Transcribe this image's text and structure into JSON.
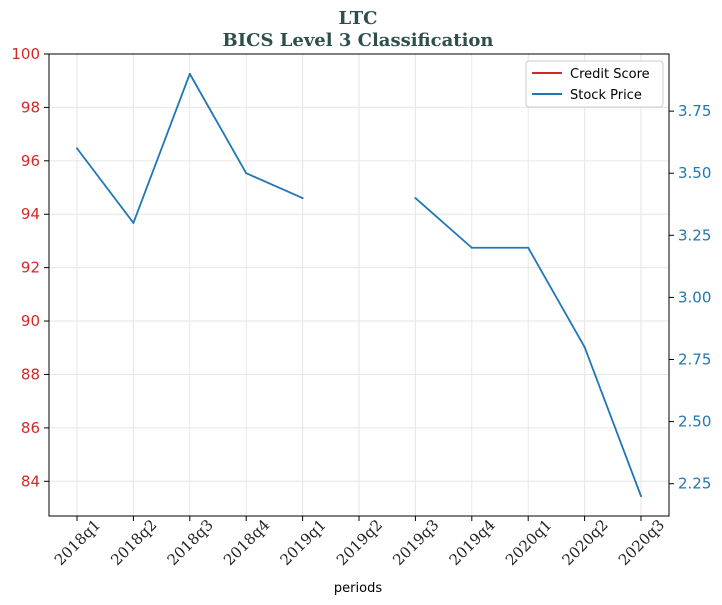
{
  "chart_data": {
    "type": "line",
    "title": "LTC",
    "subtitle": "BICS Level 3 Classification",
    "xlabel": "periods",
    "categories": [
      "2018q1",
      "2018q2",
      "2018q3",
      "2018q4",
      "2019q1",
      "2019q2",
      "2019q3",
      "2019q4",
      "2020q1",
      "2020q2",
      "2020q3"
    ],
    "y_left": {
      "range": [
        82.7,
        100
      ],
      "ticks": [
        "84",
        "86",
        "88",
        "90",
        "92",
        "94",
        "96",
        "98",
        "100"
      ],
      "color": "#d62728"
    },
    "y_right": {
      "range": [
        2.12,
        3.98
      ],
      "ticks": [
        "2.25",
        "2.50",
        "2.75",
        "3.00",
        "3.25",
        "3.50",
        "3.75"
      ],
      "color": "#1f77b4"
    },
    "series": [
      {
        "name": "Credit Score",
        "axis": "left",
        "color": "#d62728",
        "values": [
          null,
          null,
          null,
          null,
          null,
          null,
          null,
          null,
          null,
          null,
          null
        ]
      },
      {
        "name": "Stock Price",
        "axis": "right",
        "color": "#1f77b4",
        "values": [
          3.6,
          3.3,
          3.9,
          3.5,
          3.4,
          null,
          3.4,
          3.2,
          3.2,
          2.8,
          2.2
        ]
      }
    ],
    "grid": true,
    "legend_position": "top-right"
  }
}
